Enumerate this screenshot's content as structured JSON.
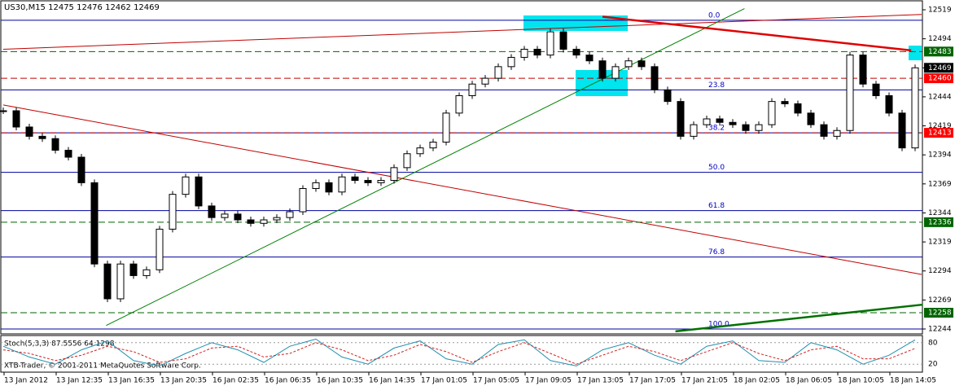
{
  "chart_data": {
    "type": "candlestick",
    "header": "US30,M15  12475 12476 12462 12469",
    "close": [
      12432,
      12418,
      12410,
      12408,
      12398,
      12392,
      12370,
      12300,
      12270,
      12300,
      12290,
      12295,
      12330,
      12360,
      12375,
      12350,
      12340,
      12343,
      12338,
      12335,
      12338,
      12340,
      12345,
      12365,
      12370,
      12362,
      12375,
      12372,
      12370,
      12372,
      12383,
      12395,
      12400,
      12405,
      12430,
      12445,
      12455,
      12460,
      12470,
      12478,
      12485,
      12480,
      12500,
      12485,
      12480,
      12475,
      12460,
      12470,
      12475,
      12470,
      12450,
      12440,
      12410,
      12420,
      12425,
      12422,
      12420,
      12415,
      12420,
      12440,
      12438,
      12430,
      12420,
      12410,
      12415,
      12480,
      12455,
      12445,
      12430,
      12400,
      12469
    ],
    "ylim": [
      12244,
      12519
    ],
    "yticks": [
      12519,
      12494,
      12469,
      12444,
      12419,
      12394,
      12369,
      12344,
      12319,
      12294,
      12269,
      12244
    ],
    "price_markers": [
      {
        "value": 12483,
        "color": "#006400",
        "line": "#006400"
      },
      {
        "value": 12469,
        "color": "#000000",
        "line": null
      },
      {
        "value": 12460,
        "color": "#ff0000",
        "line": "#c00000"
      },
      {
        "value": 12413,
        "color": "#ff0000",
        "line": "#c00000"
      },
      {
        "value": 12336,
        "color": "#006400",
        "line": "#006400"
      },
      {
        "value": 12258,
        "color": "#006400",
        "line": "#006400"
      }
    ],
    "fib_levels": [
      {
        "value": 12510,
        "label": "0.0"
      },
      {
        "value": 12450,
        "label": "23.8"
      },
      {
        "value": 12413,
        "label": "38.2"
      },
      {
        "value": 12379,
        "label": "50.0"
      },
      {
        "value": 12346,
        "label": "61.8"
      },
      {
        "value": 12306,
        "label": "76.8"
      },
      {
        "value": 12244,
        "label": "100.0"
      }
    ],
    "trendlines": [
      {
        "color": "#c00000",
        "width": 1,
        "from": [
          0,
          12485
        ],
        "to": [
          70.5,
          12515
        ]
      },
      {
        "color": "#c00000",
        "width": 1,
        "from": [
          0,
          12437
        ],
        "to": [
          70.5,
          12291
        ]
      },
      {
        "color": "#008000",
        "width": 1,
        "from": [
          7.9,
          12247
        ],
        "to": [
          56.9,
          12520
        ]
      },
      {
        "color": "#e00000",
        "width": 2.5,
        "from": [
          46,
          12513
        ],
        "to": [
          69.7,
          12484
        ]
      },
      {
        "color": "#007000",
        "width": 2.5,
        "from": [
          51.6,
          12242
        ],
        "to": [
          70.6,
          12265
        ]
      }
    ],
    "stoch": {
      "title": "Stoch(5,3,3) 87.5556 64.1298",
      "copyright": "XTB-Trader, © 2001-2011 MetaQuotes Software Corp.",
      "ylim": [
        0,
        100
      ],
      "yticks": [
        80,
        20
      ],
      "main": [
        70,
        40,
        20,
        60,
        85,
        30,
        15,
        50,
        80,
        60,
        25,
        70,
        90,
        40,
        20,
        65,
        85,
        35,
        20,
        75,
        88,
        30,
        15,
        60,
        80,
        45,
        20,
        70,
        85,
        30,
        25,
        80,
        60,
        20,
        45,
        88
      ],
      "signal": [
        60,
        50,
        30,
        45,
        70,
        55,
        25,
        35,
        65,
        70,
        40,
        50,
        80,
        60,
        30,
        45,
        75,
        55,
        25,
        55,
        80,
        50,
        20,
        45,
        70,
        55,
        30,
        55,
        80,
        50,
        30,
        60,
        70,
        35,
        35,
        64
      ]
    },
    "xtick_labels": [
      "13 Jan 2012",
      "13 Jan 12:35",
      "13 Jan 16:35",
      "13 Jan 20:35",
      "16 Jan 02:35",
      "16 Jan 06:35",
      "16 Jan 10:35",
      "16 Jan 14:35",
      "17 Jan 01:05",
      "17 Jan 05:05",
      "17 Jan 09:05",
      "17 Jan 13:05",
      "17 Jan 17:05",
      "17 Jan 21:05",
      "18 Jan 02:05",
      "18 Jan 06:05",
      "18 Jan 10:05",
      "18 Jan 14:05"
    ]
  }
}
